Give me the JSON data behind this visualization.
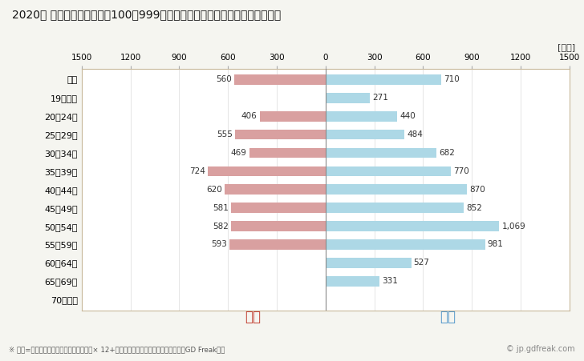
{
  "title": "2020年 民間企業（従業者数100〜999人）フルタイム労働者の男女別平均年収",
  "unit_label": "[万円]",
  "categories": [
    "全体",
    "19歳以下",
    "20〜24歳",
    "25〜29歳",
    "30〜34歳",
    "35〜39歳",
    "40〜44歳",
    "45〜49歳",
    "50〜54歳",
    "55〜59歳",
    "60〜64歳",
    "65〜69歳",
    "70歳以上"
  ],
  "female_values": [
    560,
    0,
    406,
    555,
    469,
    724,
    620,
    581,
    582,
    593,
    0,
    0,
    0
  ],
  "male_values": [
    710,
    271,
    440,
    484,
    682,
    770,
    870,
    852,
    1069,
    981,
    527,
    331,
    0
  ],
  "female_color": "#d9a0a0",
  "male_color": "#add8e6",
  "female_label": "女性",
  "male_label": "男性",
  "female_label_color": "#c0392b",
  "male_label_color": "#4d94c9",
  "xlim": 1500,
  "footnote": "※ 年収=「きまって支給する現金給与額」× 12+「年間賞与その他特別給与額」としてGD Freak推計",
  "watermark": "© jp.gdfreak.com",
  "bg_color": "#f5f5f0",
  "plot_bg_color": "#ffffff",
  "border_color": "#c8b89a",
  "border_top_color": "#b8a888",
  "grid_color": "#e0e0e0",
  "center_line_color": "#888888",
  "value_label_color": "#333333"
}
